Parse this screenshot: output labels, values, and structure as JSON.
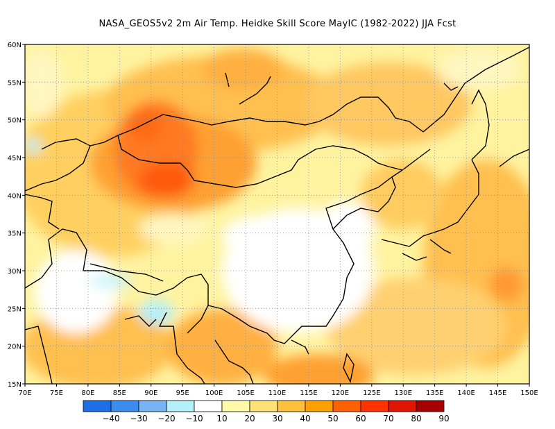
{
  "title": "NASA_GEOS5v2  2m Air Temp. Heidke Skill Score MayIC (1982-2022) JJA Fcst",
  "map": {
    "lon_labels": [
      "70E",
      "75E",
      "80E",
      "85E",
      "90E",
      "95E",
      "100E",
      "105E",
      "110E",
      "115E",
      "120E",
      "125E",
      "130E",
      "135E",
      "140E",
      "145E",
      "150E"
    ],
    "lat_labels": [
      "60N",
      "55N",
      "50N",
      "45N",
      "40N",
      "35N",
      "30N",
      "25N",
      "20N",
      "15N"
    ],
    "lon_range": [
      70,
      150
    ],
    "lat_range": [
      15,
      60
    ],
    "grid": "dotted"
  },
  "colorbar": {
    "labels": [
      "−40",
      "−30",
      "−20",
      "−10",
      "10",
      "20",
      "30",
      "40",
      "50",
      "60",
      "70",
      "80",
      "90"
    ],
    "colors": [
      "#1e6ee6",
      "#3c8cf0",
      "#78b4f5",
      "#b4f0fa",
      "#ffffff",
      "#fffaaa",
      "#ffe178",
      "#ffc03c",
      "#ffa000",
      "#ff6000",
      "#ff3200",
      "#e11400",
      "#a50000"
    ]
  },
  "colors": {
    "coast": "#000000",
    "grid": "#888888"
  }
}
